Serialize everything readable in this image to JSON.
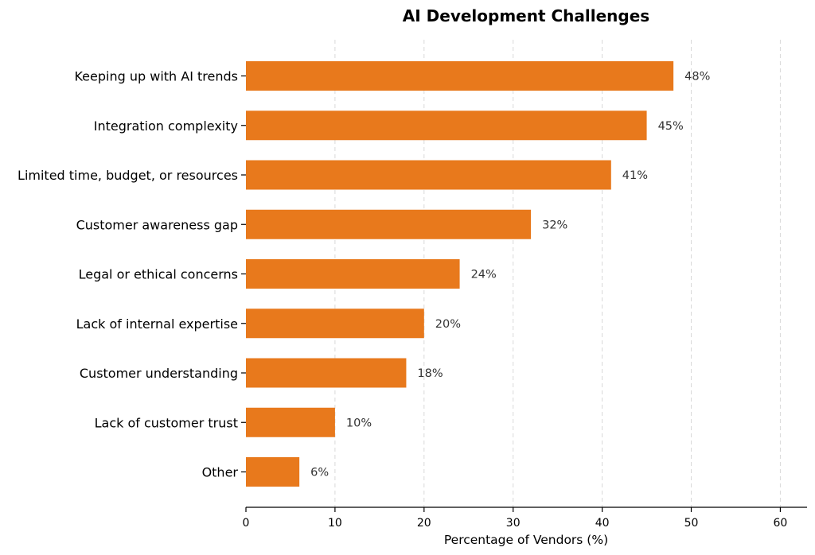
{
  "chart_data": {
    "type": "bar",
    "orientation": "horizontal",
    "title": "AI Development Challenges",
    "xlabel": "Percentage of Vendors (%)",
    "ylabel": "",
    "xlim": [
      0,
      63
    ],
    "xticks": [
      0,
      10,
      20,
      30,
      40,
      50,
      60
    ],
    "grid": "vertical dashed",
    "bar_color": "#e8791c",
    "categories": [
      "Keeping up with AI trends",
      "Integration complexity",
      "Limited time, budget, or resources",
      "Customer awareness gap",
      "Legal or ethical concerns",
      "Lack of internal expertise",
      "Customer understanding",
      "Lack of customer trust",
      "Other"
    ],
    "values": [
      48,
      45,
      41,
      32,
      24,
      20,
      18,
      10,
      6
    ],
    "value_labels": [
      "48%",
      "45%",
      "41%",
      "32%",
      "24%",
      "20%",
      "18%",
      "10%",
      "6%"
    ]
  }
}
